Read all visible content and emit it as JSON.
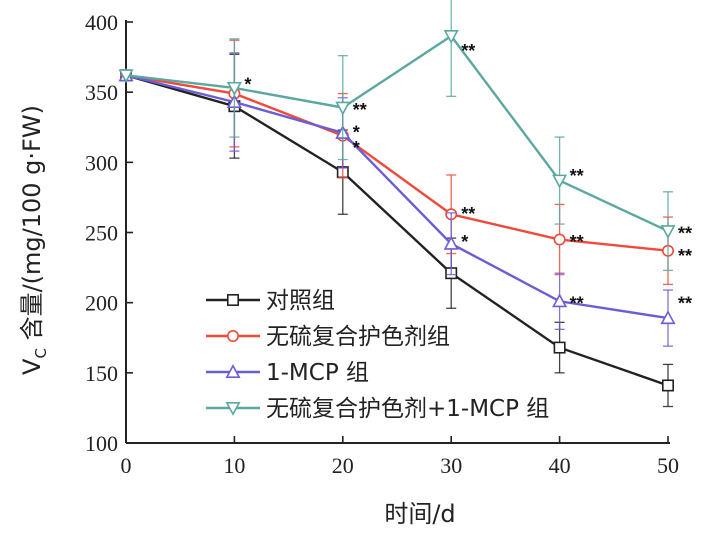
{
  "chart_data": {
    "type": "line",
    "xlabel": "时间/d",
    "ylabel_main": "V",
    "ylabel_sub": "C",
    "ylabel_rest": " 含量/(mg/100 g·FW)",
    "x": [
      0,
      10,
      20,
      30,
      40,
      50
    ],
    "xlim": [
      0,
      50
    ],
    "ylim": [
      100,
      400
    ],
    "xticks": [
      "0",
      "10",
      "20",
      "30",
      "40",
      "50"
    ],
    "yticks": [
      "100",
      "150",
      "200",
      "250",
      "300",
      "350",
      "400"
    ],
    "grid": false,
    "legend_position": "bottom-left",
    "series": [
      {
        "name": "对照组",
        "color": "#222222",
        "marker": "square",
        "values": [
          362,
          340,
          293,
          221,
          168,
          141
        ],
        "errors": [
          0,
          37,
          30,
          25,
          18,
          15
        ]
      },
      {
        "name": "无硫复合护色剂组",
        "color": "#ef4a3a",
        "marker": "circle",
        "values": [
          362,
          349,
          319,
          263,
          245,
          237
        ],
        "errors": [
          0,
          38,
          30,
          28,
          25,
          24
        ]
      },
      {
        "name": "1-MCP 组",
        "color": "#6a5ed6",
        "marker": "triangle-up",
        "values": [
          362,
          343,
          321,
          242,
          201,
          189
        ],
        "errors": [
          0,
          35,
          25,
          22,
          20,
          20
        ]
      },
      {
        "name": "无硫复合护色剂+1-MCP 组",
        "color": "#5aa8a0",
        "marker": "triangle-down",
        "values": [
          362,
          353,
          339,
          390,
          287,
          251
        ],
        "errors": [
          0,
          35,
          37,
          43,
          31,
          28
        ]
      }
    ],
    "annotations": [
      {
        "x": 10,
        "y": 356,
        "text": "*"
      },
      {
        "x": 20,
        "y": 338,
        "text": "**"
      },
      {
        "x": 20,
        "y": 322,
        "text": "*"
      },
      {
        "x": 20,
        "y": 311,
        "text": "*"
      },
      {
        "x": 30,
        "y": 380,
        "text": "**"
      },
      {
        "x": 30,
        "y": 264,
        "text": "**"
      },
      {
        "x": 30,
        "y": 244,
        "text": "*"
      },
      {
        "x": 40,
        "y": 291,
        "text": "**"
      },
      {
        "x": 40,
        "y": 244,
        "text": "**"
      },
      {
        "x": 40,
        "y": 200,
        "text": "**"
      },
      {
        "x": 50,
        "y": 250,
        "text": "**"
      },
      {
        "x": 50,
        "y": 234,
        "text": "**"
      },
      {
        "x": 50,
        "y": 200,
        "text": "**"
      }
    ]
  }
}
